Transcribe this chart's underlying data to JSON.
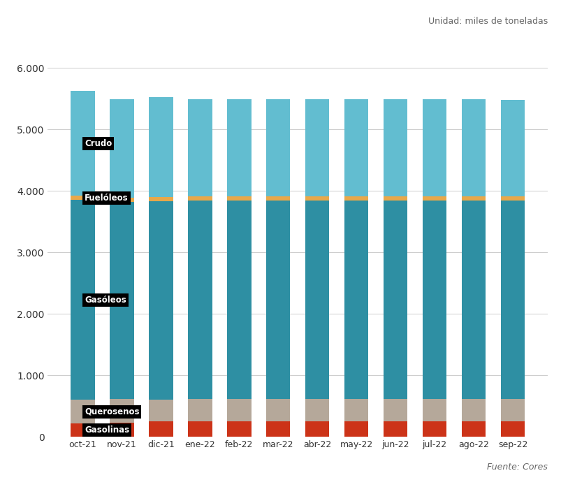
{
  "categories": [
    "oct-21",
    "nov-21",
    "dic-21",
    "ene-22",
    "feb-22",
    "mar-22",
    "abr-22",
    "may-22",
    "jun-22",
    "jul-22",
    "ago-22",
    "sep-22"
  ],
  "gasolinas": [
    220,
    230,
    250,
    250,
    250,
    250,
    250,
    250,
    250,
    250,
    250,
    250
  ],
  "querosenos": [
    380,
    390,
    350,
    360,
    360,
    360,
    360,
    360,
    360,
    360,
    360,
    360
  ],
  "gasoleos": [
    3250,
    3200,
    3230,
    3230,
    3230,
    3230,
    3230,
    3230,
    3230,
    3230,
    3230,
    3230
  ],
  "fueloleos": [
    70,
    70,
    70,
    70,
    70,
    70,
    70,
    70,
    70,
    70,
    70,
    70
  ],
  "crudo": [
    1700,
    1600,
    1620,
    1580,
    1580,
    1580,
    1580,
    1580,
    1580,
    1580,
    1580,
    1570
  ],
  "color_gasolinas": "#cc3318",
  "color_querosenos": "#b5a89a",
  "color_gasoleos": "#2e8fa3",
  "color_fueloleos": "#e8a84a",
  "color_crudo": "#62bdd0",
  "ylabel_text": "Unidad: miles de toneladas",
  "source_text": "Fuente: Cores",
  "yticks": [
    0,
    1000,
    2000,
    3000,
    4000,
    5000,
    6000
  ],
  "ylim": [
    0,
    6400
  ],
  "background_color": "#ffffff",
  "label_crudo": "Crudo",
  "label_fueloleos": "Fuelóleos",
  "label_gasoleos": "Gasóleos",
  "label_querosenos": "Querosenos",
  "label_gasolinas": "Gasolinas"
}
